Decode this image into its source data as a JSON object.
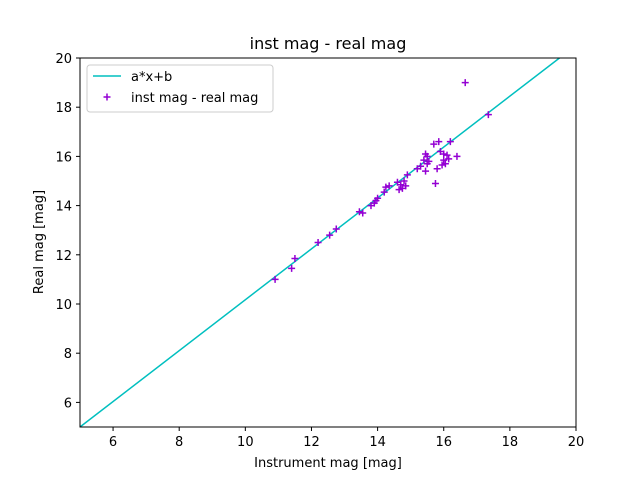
{
  "chart_data": {
    "type": "scatter",
    "title": "inst mag - real mag",
    "xlabel": "Instrument mag [mag]",
    "ylabel": "Real mag [mag]",
    "xlim": [
      5,
      20
    ],
    "ylim": [
      5,
      20
    ],
    "xticks": [
      6,
      8,
      10,
      12,
      14,
      16,
      18,
      20
    ],
    "yticks": [
      6,
      8,
      10,
      12,
      14,
      16,
      18,
      20
    ],
    "grid": false,
    "legend_position": "upper-left",
    "series": [
      {
        "name": "a*x+b",
        "kind": "line",
        "color": "#00bfbf",
        "x": [
          5,
          19.5
        ],
        "y": [
          5,
          20
        ]
      },
      {
        "name": "inst mag - real mag",
        "kind": "scatter",
        "marker": "plus",
        "color": "#9400d3",
        "x": [
          10.9,
          11.4,
          11.5,
          12.2,
          12.55,
          12.75,
          13.45,
          13.55,
          13.8,
          13.9,
          13.95,
          14.0,
          14.2,
          14.25,
          14.35,
          14.6,
          14.65,
          14.7,
          14.75,
          14.8,
          14.85,
          14.9,
          15.2,
          15.3,
          15.4,
          15.45,
          15.45,
          15.5,
          15.5,
          15.55,
          15.7,
          15.75,
          15.8,
          15.85,
          15.9,
          15.95,
          16.0,
          16.0,
          16.05,
          16.1,
          16.15,
          16.2,
          16.4,
          16.65,
          17.35
        ],
        "y": [
          11.0,
          11.45,
          11.85,
          12.5,
          12.8,
          13.05,
          13.75,
          13.7,
          14.0,
          14.1,
          14.2,
          14.3,
          14.55,
          14.75,
          14.8,
          14.95,
          14.65,
          14.85,
          14.7,
          15.0,
          14.8,
          15.25,
          15.5,
          15.6,
          15.85,
          16.1,
          15.4,
          16.0,
          15.7,
          15.8,
          16.5,
          14.9,
          15.5,
          16.6,
          16.2,
          15.65,
          16.1,
          15.85,
          15.7,
          16.05,
          15.9,
          16.6,
          16.0,
          19.0,
          17.7
        ]
      }
    ]
  }
}
